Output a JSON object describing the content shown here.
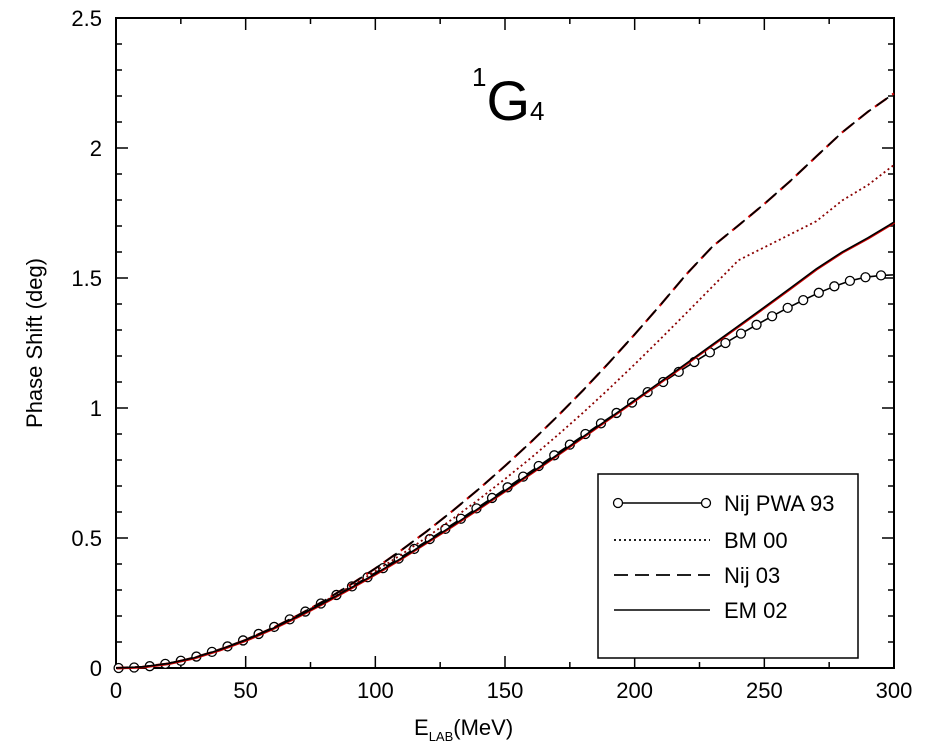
{
  "chart_data": {
    "type": "line",
    "title": "1G4",
    "title_parts": {
      "sup": "1",
      "main": "G",
      "sub": "4"
    },
    "xlabel": "E",
    "xlabel_sub": "LAB",
    "xlabel_suffix": "(MeV)",
    "ylabel": "Phase Shift (deg)",
    "xlim": [
      0,
      300
    ],
    "ylim": [
      0,
      2.5
    ],
    "xticks": [
      0,
      50,
      100,
      150,
      200,
      250,
      300
    ],
    "xtick_labels": [
      "0",
      "50",
      "100",
      "150",
      "200",
      "250",
      "300"
    ],
    "yticks": [
      0,
      0.5,
      1,
      1.5,
      2,
      2.5
    ],
    "ytick_labels": [
      "0",
      "0.5",
      "1",
      "1.5",
      "2",
      "2.5"
    ],
    "grid": false,
    "legend_position": "bottom-right",
    "series": [
      {
        "name": "Nij PWA 93",
        "style": "solid-circles",
        "color": "#000000",
        "x": [
          1,
          7,
          13,
          19,
          25,
          31,
          37,
          43,
          49,
          55,
          61,
          67,
          73,
          79,
          85,
          91,
          97,
          103,
          109,
          115,
          121,
          127,
          133,
          139,
          145,
          151,
          157,
          163,
          169,
          175,
          181,
          187,
          193,
          199,
          205,
          211,
          217,
          223,
          229,
          235,
          241,
          247,
          253,
          259,
          265,
          271,
          277,
          283,
          289,
          295,
          300
        ],
        "y": [
          0.0,
          0.002,
          0.007,
          0.016,
          0.028,
          0.044,
          0.062,
          0.083,
          0.106,
          0.131,
          0.158,
          0.187,
          0.217,
          0.248,
          0.281,
          0.314,
          0.349,
          0.384,
          0.421,
          0.458,
          0.496,
          0.535,
          0.574,
          0.614,
          0.654,
          0.695,
          0.736,
          0.777,
          0.818,
          0.859,
          0.9,
          0.941,
          0.981,
          1.021,
          1.061,
          1.1,
          1.139,
          1.177,
          1.214,
          1.25,
          1.286,
          1.32,
          1.353,
          1.385,
          1.415,
          1.443,
          1.468,
          1.489,
          1.503,
          1.51,
          1.512
        ]
      },
      {
        "name": "BM 00",
        "style": "dotted",
        "color": "#8b0000",
        "x": [
          0,
          10,
          20,
          30,
          40,
          50,
          60,
          70,
          80,
          90,
          100,
          110,
          120,
          130,
          140,
          150,
          160,
          170,
          180,
          190,
          200,
          210,
          220,
          230,
          240,
          250,
          260,
          270,
          280,
          290,
          300
        ],
        "y": [
          0.0,
          0.004,
          0.017,
          0.039,
          0.07,
          0.108,
          0.152,
          0.201,
          0.254,
          0.311,
          0.372,
          0.436,
          0.504,
          0.575,
          0.649,
          0.727,
          0.808,
          0.893,
          0.981,
          1.073,
          1.168,
          1.266,
          1.366,
          1.467,
          1.568,
          1.618,
          1.668,
          1.718,
          1.798,
          1.858,
          1.935
        ]
      },
      {
        "name": "Nij 03",
        "style": "dashed",
        "color": "#000000",
        "x": [
          0,
          10,
          20,
          30,
          40,
          50,
          60,
          70,
          80,
          90,
          100,
          110,
          120,
          130,
          140,
          150,
          160,
          170,
          180,
          190,
          200,
          210,
          220,
          230,
          240,
          250,
          260,
          270,
          280,
          290,
          300
        ],
        "y": [
          0.0,
          0.004,
          0.017,
          0.039,
          0.07,
          0.108,
          0.152,
          0.202,
          0.257,
          0.318,
          0.383,
          0.453,
          0.527,
          0.606,
          0.689,
          0.777,
          0.869,
          0.966,
          1.067,
          1.173,
          1.283,
          1.397,
          1.515,
          1.621,
          1.702,
          1.785,
          1.873,
          1.967,
          2.06,
          2.14,
          2.21
        ]
      },
      {
        "name": "EM 02",
        "style": "solid",
        "color": "#000000",
        "x": [
          0,
          10,
          20,
          30,
          40,
          50,
          60,
          70,
          80,
          90,
          100,
          110,
          120,
          130,
          140,
          150,
          160,
          170,
          180,
          190,
          200,
          210,
          220,
          230,
          240,
          250,
          260,
          270,
          280,
          290,
          300
        ],
        "y": [
          0.0,
          0.004,
          0.017,
          0.039,
          0.07,
          0.107,
          0.15,
          0.198,
          0.25,
          0.305,
          0.362,
          0.422,
          0.485,
          0.549,
          0.615,
          0.682,
          0.75,
          0.819,
          0.889,
          0.959,
          1.03,
          1.101,
          1.172,
          1.244,
          1.316,
          1.388,
          1.461,
          1.535,
          1.6,
          1.655,
          1.715
        ]
      }
    ]
  },
  "legend": {
    "items": [
      "Nij PWA 93",
      "BM 00",
      "Nij 03",
      "EM 02"
    ]
  },
  "colors": {
    "axis": "#000000",
    "red_overlay": "#cc0000"
  }
}
